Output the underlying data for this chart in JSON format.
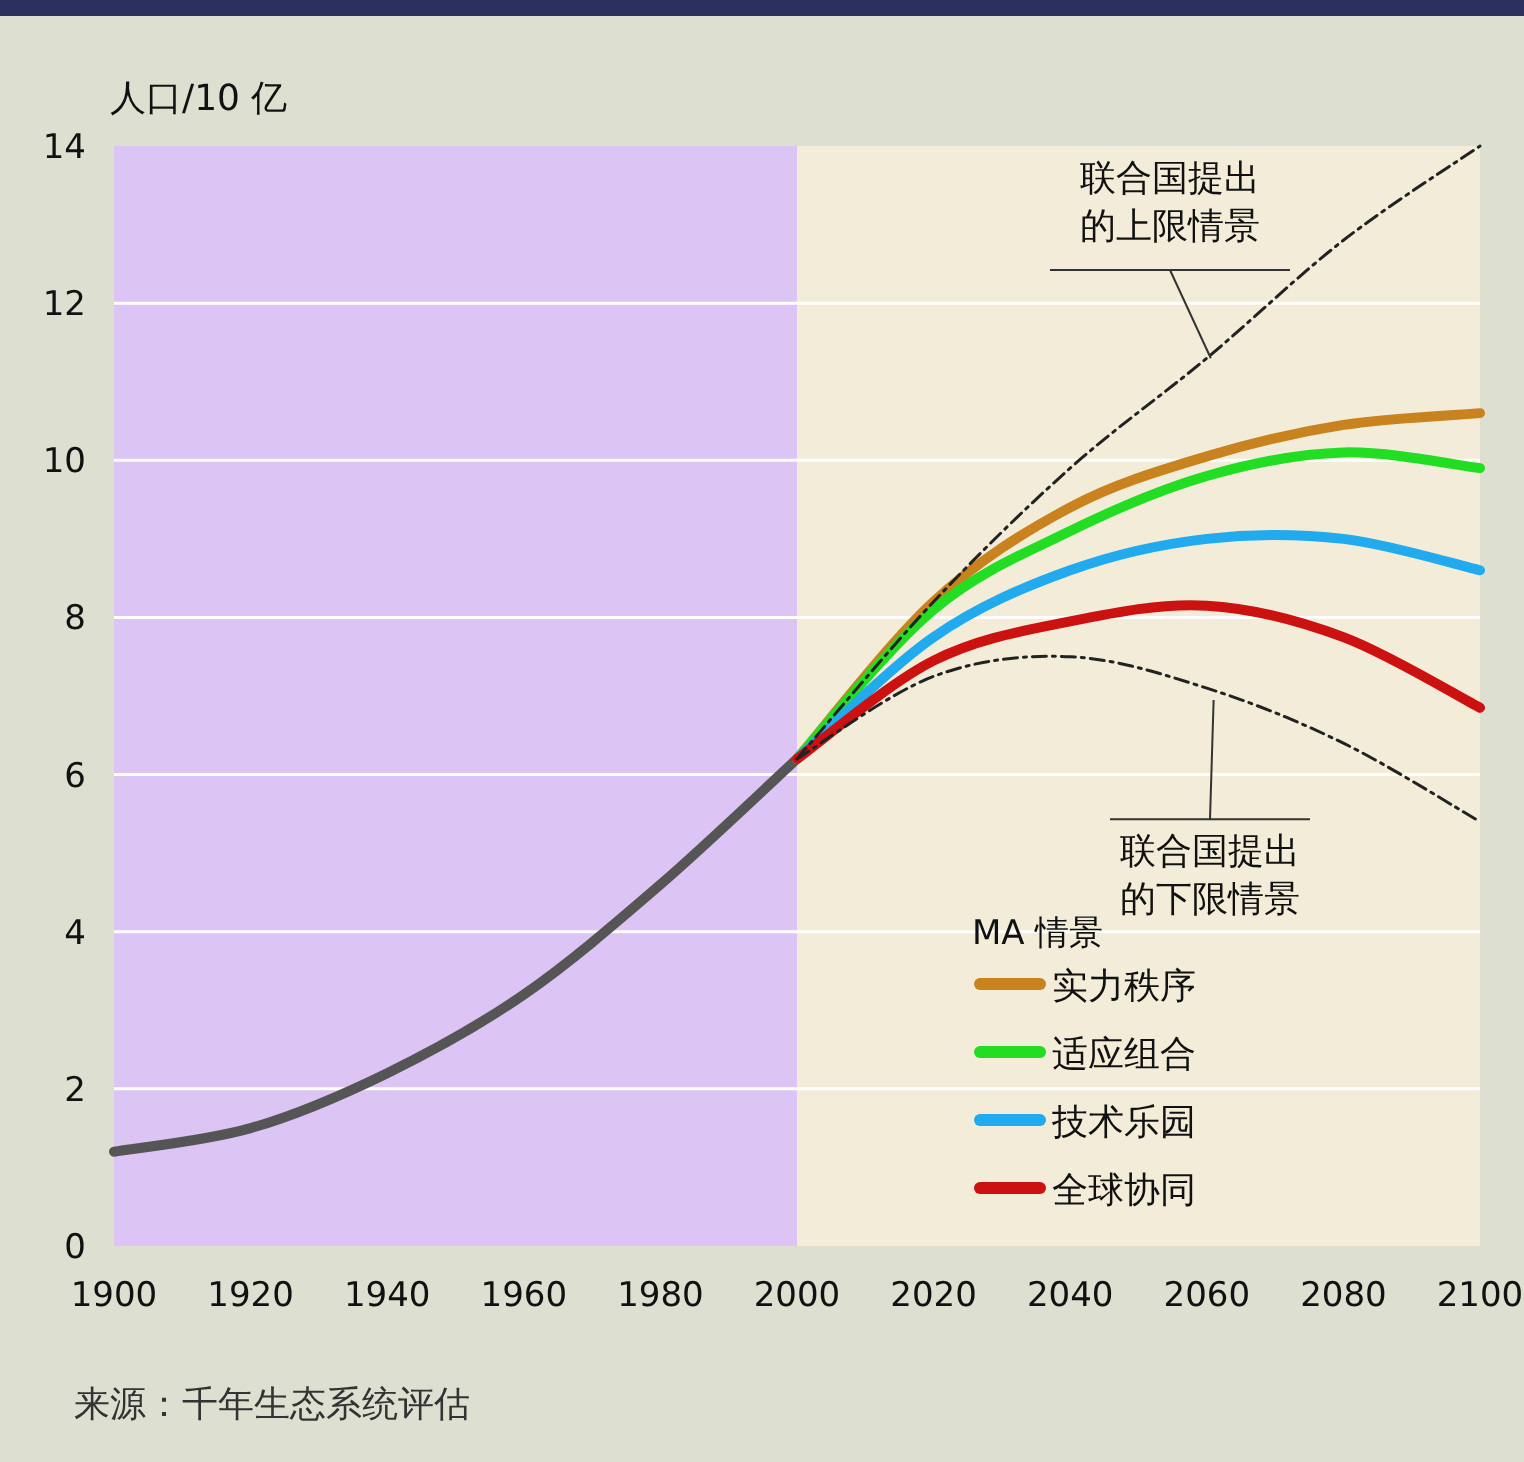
{
  "chart_data": {
    "type": "line",
    "ylabel": "人口/10 亿",
    "legend_title": "MA 情景",
    "legend": "bottom right",
    "grid": "y",
    "marker": "none",
    "xlim": [
      1900,
      2100
    ],
    "xticks": [
      1900,
      1920,
      1940,
      1960,
      1980,
      2000,
      2020,
      2040,
      2060,
      2080,
      2100
    ],
    "ylim": [
      0,
      14
    ],
    "yticks": [
      0,
      2,
      4,
      6,
      8,
      10,
      12,
      14
    ],
    "bands": [
      {
        "axis": "x",
        "from": 1900,
        "to": 2000,
        "color": "#dcc4f4"
      }
    ],
    "series": [
      {
        "color": "#555555",
        "x": [
          1900,
          1920,
          1940,
          1960,
          1980,
          2000
        ],
        "values": [
          1.2,
          1.5,
          2.2,
          3.2,
          4.6,
          6.2
        ]
      },
      {
        "name": "联合国提出的上限情景",
        "color": "#222222",
        "line_style": "dashed",
        "x": [
          2000,
          2020,
          2040,
          2060,
          2080,
          2100
        ],
        "values": [
          6.2,
          8.2,
          9.9,
          11.3,
          12.8,
          14.0
        ]
      },
      {
        "name": "联合国提出的下限情景",
        "color": "#222222",
        "line_style": "dashed",
        "x": [
          2000,
          2020,
          2040,
          2060,
          2080,
          2100
        ],
        "values": [
          6.2,
          7.25,
          7.5,
          7.1,
          6.4,
          5.4
        ]
      },
      {
        "name": "实力秩序",
        "color": "#c8821e",
        "x": [
          2000,
          2020,
          2040,
          2060,
          2080,
          2100
        ],
        "values": [
          6.2,
          8.2,
          9.4,
          10.05,
          10.45,
          10.6
        ]
      },
      {
        "name": "适应组合",
        "color": "#22dd22",
        "x": [
          2000,
          2020,
          2040,
          2060,
          2080,
          2100
        ],
        "values": [
          6.2,
          8.1,
          9.1,
          9.8,
          10.1,
          9.9
        ]
      },
      {
        "name": "技术乐园",
        "color": "#22aaee",
        "x": [
          2000,
          2020,
          2040,
          2060,
          2080,
          2100
        ],
        "values": [
          6.2,
          7.75,
          8.6,
          9.0,
          9.0,
          8.6
        ]
      },
      {
        "name": "全球协同",
        "color": "#cc1111",
        "x": [
          2000,
          2020,
          2040,
          2060,
          2080,
          2100
        ],
        "values": [
          6.2,
          7.45,
          7.95,
          8.15,
          7.75,
          6.85
        ]
      }
    ],
    "annotations": [
      "来源：千年生态系统评估"
    ]
  }
}
